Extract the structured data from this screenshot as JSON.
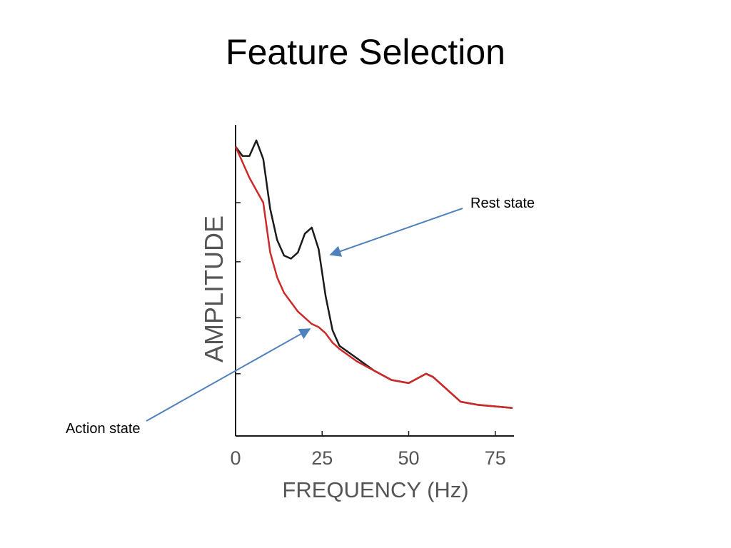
{
  "slide": {
    "title": "Feature Selection",
    "annotations": {
      "rest": "Rest state",
      "action": "Action state"
    },
    "colors": {
      "arrow": "#4f81bd"
    }
  },
  "chart_data": {
    "type": "line",
    "title": "",
    "xlabel": "FREQUENCY (Hz)",
    "ylabel": "AMPLITUDE",
    "xlim": [
      0,
      80
    ],
    "ylim": [
      0,
      100
    ],
    "xticks": [
      0,
      25,
      50,
      75
    ],
    "xtick_labels": [
      "0",
      "25",
      "50",
      "75"
    ],
    "yticks": [
      20,
      38,
      56,
      75
    ],
    "grid": false,
    "legend": "none",
    "series": [
      {
        "color": "#1a1a1a",
        "x": [
          0,
          2,
          4,
          6,
          8,
          10,
          12,
          14,
          16,
          18,
          20,
          22,
          24,
          26,
          28,
          30,
          35,
          40,
          45,
          50,
          55,
          57,
          60,
          65,
          70,
          80
        ],
        "y": [
          93,
          90,
          90,
          95,
          89,
          73,
          63,
          58,
          57,
          59,
          65,
          67,
          60,
          45,
          34,
          29,
          25,
          21,
          18,
          17,
          20,
          19,
          16,
          11,
          10,
          9
        ]
      },
      {
        "color": "#cc2a2a",
        "x": [
          0,
          2,
          4,
          6,
          8,
          10,
          12,
          14,
          16,
          18,
          20,
          22,
          24,
          26,
          28,
          30,
          35,
          40,
          45,
          50,
          55,
          57,
          60,
          65,
          70,
          80
        ],
        "y": [
          93,
          88,
          83,
          79,
          75,
          59,
          51,
          46,
          43,
          40,
          38,
          36,
          35,
          33,
          30,
          28,
          24,
          21,
          18,
          17,
          20,
          19,
          16,
          11,
          10,
          9
        ]
      }
    ]
  }
}
